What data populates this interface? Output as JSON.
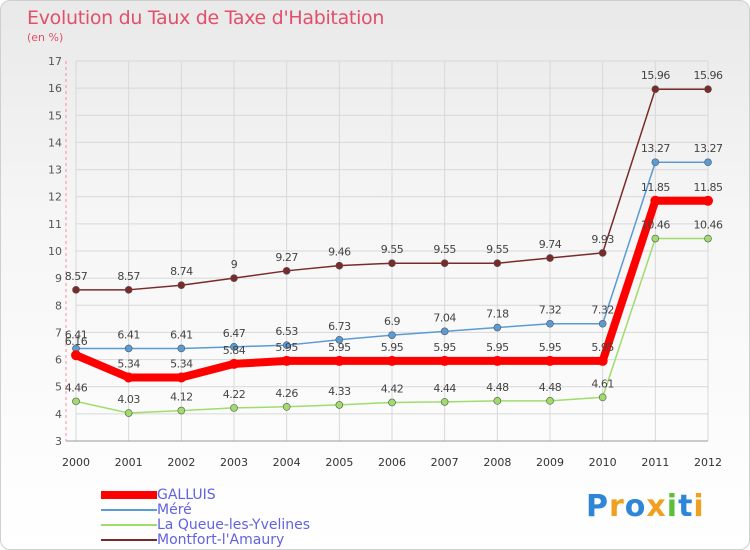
{
  "title": "Evolution du Taux de Taxe d'Habitation",
  "subtitle": "(en %)",
  "logo": [
    "P",
    "r",
    "o",
    "x",
    "i",
    "t",
    "i"
  ],
  "logo_colors": [
    "#2e86d6",
    "#f0a020",
    "#2e86d6",
    "#f0a020",
    "#5bbf3a",
    "#2e86d6",
    "#f0a020"
  ],
  "chart_data": {
    "type": "line",
    "x": [
      "2000",
      "2001",
      "2002",
      "2003",
      "2004",
      "2005",
      "2006",
      "2007",
      "2008",
      "2009",
      "2010",
      "2011",
      "2012"
    ],
    "ylim": [
      3,
      17
    ],
    "yticks": [
      3,
      4,
      5,
      6,
      7,
      8,
      9,
      10,
      11,
      12,
      13,
      14,
      15,
      16,
      17
    ],
    "grid": true,
    "legend_position": "bottom-left",
    "series": [
      {
        "name": "GALLUIS",
        "color": "#ff0000",
        "values": [
          6.16,
          5.34,
          5.34,
          5.84,
          5.95,
          5.95,
          5.95,
          5.95,
          5.95,
          5.95,
          5.95,
          11.85,
          11.85
        ],
        "labels": [
          "6.16",
          "5.34",
          "5.34",
          "5.84",
          "5.95",
          "5.95",
          "5.95",
          "5.95",
          "5.95",
          "5.95",
          "5.95",
          "11.85",
          "11.85"
        ]
      },
      {
        "name": "Méré",
        "color": "#5b9bd5",
        "values": [
          6.41,
          6.41,
          6.41,
          6.47,
          6.53,
          6.73,
          6.9,
          7.04,
          7.18,
          7.32,
          7.32,
          13.27,
          13.27
        ],
        "labels": [
          "6.41",
          "6.41",
          "6.41",
          "6.47",
          "6.53",
          "6.73",
          "6.9",
          "7.04",
          "7.18",
          "7.32",
          "7.32",
          "13.27",
          "13.27"
        ]
      },
      {
        "name": "La Queue-les-Yvelines",
        "color": "#9fdc6c",
        "values": [
          4.46,
          4.03,
          4.12,
          4.22,
          4.26,
          4.33,
          4.42,
          4.44,
          4.48,
          4.48,
          4.61,
          10.46,
          10.46
        ],
        "labels": [
          "4.46",
          "4.03",
          "4.12",
          "4.22",
          "4.26",
          "4.33",
          "4.42",
          "4.44",
          "4.48",
          "4.48",
          "4.61",
          "10.46",
          "10.46"
        ]
      },
      {
        "name": "Montfort-l'Amaury",
        "color": "#7b2a2a",
        "values": [
          8.57,
          8.57,
          8.74,
          9,
          9.27,
          9.46,
          9.55,
          9.55,
          9.55,
          9.74,
          9.93,
          15.96,
          15.96
        ],
        "labels": [
          "8.57",
          "8.57",
          "8.74",
          "9",
          "9.27",
          "9.46",
          "9.55",
          "9.55",
          "9.55",
          "9.74",
          "9.93",
          "15.96",
          "15.96"
        ]
      }
    ]
  }
}
